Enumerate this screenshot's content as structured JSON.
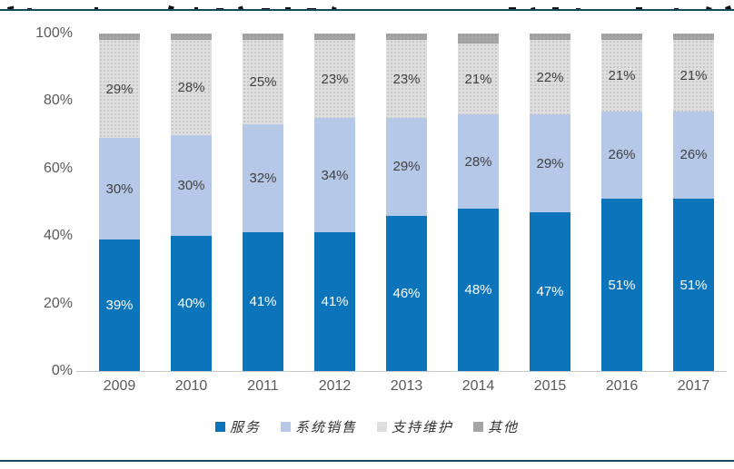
{
  "page": {
    "title_clipped": true,
    "accent_rule_color": "#17495c"
  },
  "colors": {
    "axis_text": "#595959",
    "segment_label_dark": "#404040",
    "segment_label_light": "#ffffff",
    "axis_line": "#c9c9c9"
  },
  "chart_data": {
    "type": "bar",
    "variant": "stacked-100-percent-column",
    "categories": [
      "2009",
      "2010",
      "2011",
      "2012",
      "2013",
      "2014",
      "2015",
      "2016",
      "2017"
    ],
    "series": [
      {
        "name": "服务",
        "color": "#0b74bb",
        "textured": false,
        "label_color": "#ffffff",
        "labels_visible": true,
        "values": [
          39,
          40,
          41,
          41,
          46,
          48,
          47,
          51,
          51
        ]
      },
      {
        "name": "系统销售",
        "color": "#b5c8e8",
        "textured": false,
        "label_color": "#404040",
        "labels_visible": true,
        "values": [
          30,
          30,
          32,
          34,
          29,
          28,
          29,
          26,
          26
        ]
      },
      {
        "name": "支持维护",
        "color": "#dedede",
        "textured": true,
        "label_color": "#404040",
        "labels_visible": true,
        "values": [
          29,
          28,
          25,
          23,
          23,
          21,
          22,
          21,
          21
        ]
      },
      {
        "name": "其他",
        "color": "#a5a5a5",
        "textured": true,
        "label_color": "#404040",
        "labels_visible": false,
        "values": [
          2,
          2,
          2,
          2,
          2,
          3,
          2,
          2,
          2
        ]
      }
    ],
    "value_suffix": "%",
    "title": "",
    "xlabel": "",
    "ylabel": "",
    "ylim": [
      0,
      100
    ],
    "y_ticks": [
      0,
      20,
      40,
      60,
      80,
      100
    ],
    "y_tick_labels": [
      "0%",
      "20%",
      "40%",
      "60%",
      "80%",
      "100%"
    ],
    "grid": false,
    "legend_position": "bottom"
  }
}
